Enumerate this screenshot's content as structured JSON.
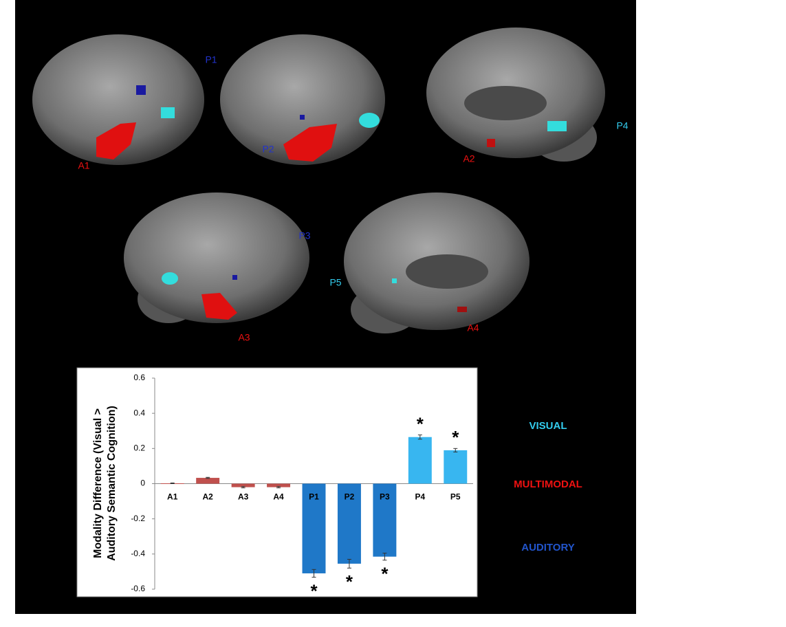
{
  "chart_data": {
    "type": "bar",
    "ylabel": [
      "Modality Difference (Visual >",
      "Auditory Semantic Cognition)"
    ],
    "categories": [
      "A1",
      "A2",
      "A3",
      "A4",
      "P1",
      "P2",
      "P3",
      "P4",
      "P5"
    ],
    "values": [
      0.002,
      0.033,
      -0.02,
      -0.02,
      -0.51,
      -0.455,
      -0.415,
      0.265,
      0.19
    ],
    "errors": [
      0.002,
      0.003,
      0.004,
      0.004,
      0.022,
      0.025,
      0.02,
      0.012,
      0.01
    ],
    "colors": [
      "#c0504d",
      "#c0504d",
      "#c0504d",
      "#c0504d",
      "#1f78c8",
      "#1f78c8",
      "#1f78c8",
      "#38b6f0",
      "#38b6f0"
    ],
    "annotations": [
      null,
      null,
      null,
      null,
      "*",
      "*",
      "*",
      "*",
      "*"
    ],
    "ylim": [
      -0.6,
      0.6
    ],
    "yticks": [
      0.6,
      0.4,
      0.2,
      0,
      -0.2,
      -0.4,
      -0.6
    ]
  },
  "modality_labels": [
    {
      "text": "VISUAL",
      "color": "#33ccee"
    },
    {
      "text": "MULTIMODAL",
      "color": "#ee1111"
    },
    {
      "text": "AUDITORY",
      "color": "#2255cc"
    }
  ],
  "brain_labels": [
    {
      "text": "P1",
      "color": "#2233cc"
    },
    {
      "text": "A1",
      "color": "#ee1111"
    },
    {
      "text": "P2",
      "color": "#2233cc"
    },
    {
      "text": "A2",
      "color": "#ee1111"
    },
    {
      "text": "P4",
      "color": "#33ccee"
    },
    {
      "text": "P3",
      "color": "#2233cc"
    },
    {
      "text": "P5",
      "color": "#33ccee"
    },
    {
      "text": "A3",
      "color": "#ee1111"
    },
    {
      "text": "A4",
      "color": "#ee1111"
    }
  ]
}
